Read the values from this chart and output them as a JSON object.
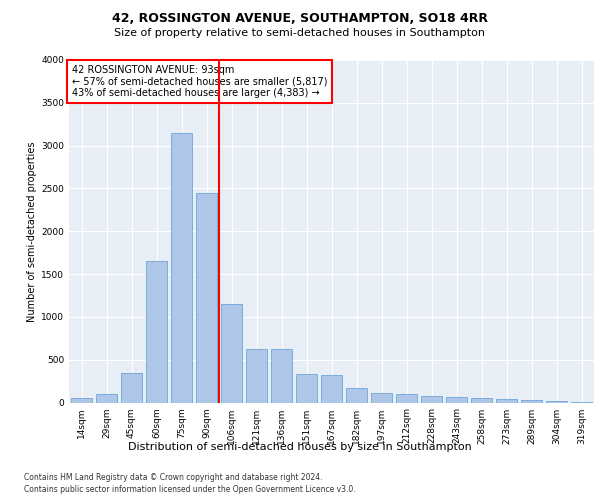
{
  "title1": "42, ROSSINGTON AVENUE, SOUTHAMPTON, SO18 4RR",
  "title2": "Size of property relative to semi-detached houses in Southampton",
  "xlabel": "Distribution of semi-detached houses by size in Southampton",
  "ylabel": "Number of semi-detached properties",
  "categories": [
    "14sqm",
    "29sqm",
    "45sqm",
    "60sqm",
    "75sqm",
    "90sqm",
    "106sqm",
    "121sqm",
    "136sqm",
    "151sqm",
    "167sqm",
    "182sqm",
    "197sqm",
    "212sqm",
    "228sqm",
    "243sqm",
    "258sqm",
    "273sqm",
    "289sqm",
    "304sqm",
    "319sqm"
  ],
  "values": [
    50,
    100,
    350,
    1650,
    3150,
    2450,
    1150,
    620,
    620,
    330,
    320,
    170,
    110,
    105,
    75,
    70,
    55,
    40,
    25,
    15,
    10
  ],
  "bar_color": "#aec6e8",
  "bar_edge_color": "#5b9bd5",
  "vline_color": "red",
  "annotation_title": "42 ROSSINGTON AVENUE: 93sqm",
  "annotation_line1": "← 57% of semi-detached houses are smaller (5,817)",
  "annotation_line2": "43% of semi-detached houses are larger (4,383) →",
  "annotation_box_color": "white",
  "annotation_box_edge": "red",
  "footnote1": "Contains HM Land Registry data © Crown copyright and database right 2024.",
  "footnote2": "Contains public sector information licensed under the Open Government Licence v3.0.",
  "ylim": [
    0,
    4000
  ],
  "yticks": [
    0,
    500,
    1000,
    1500,
    2000,
    2500,
    3000,
    3500,
    4000
  ],
  "bg_color": "#e8eef5",
  "fig_bg": "#ffffff",
  "title1_fontsize": 9,
  "title2_fontsize": 8,
  "xlabel_fontsize": 8,
  "ylabel_fontsize": 7,
  "tick_fontsize": 6.5,
  "annot_fontsize": 7,
  "footnote_fontsize": 5.5
}
